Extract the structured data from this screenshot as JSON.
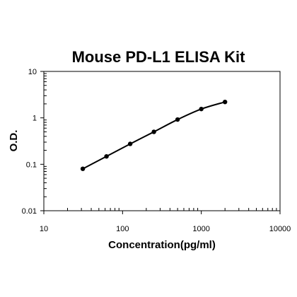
{
  "chart_data": {
    "type": "line",
    "title": "Mouse PD-L1 ELISA Kit",
    "xlabel": "Concentration(pg/ml)",
    "ylabel": "O.D.",
    "xscale": "log",
    "yscale": "log",
    "xlim": [
      10,
      10000
    ],
    "ylim": [
      0.01,
      10
    ],
    "xticks": [
      "10",
      "100",
      "1000",
      "10000"
    ],
    "yticks": [
      "0.01",
      "0.1",
      "1",
      "10"
    ],
    "grid": false,
    "legend": "none",
    "marker_color": "#000000",
    "line_color": "#000000",
    "series": [
      {
        "x": [
          31.25,
          62.5,
          125,
          250,
          500,
          1000,
          2000
        ],
        "y": [
          0.08,
          0.148,
          0.275,
          0.5,
          0.92,
          1.55,
          2.2
        ]
      }
    ]
  }
}
